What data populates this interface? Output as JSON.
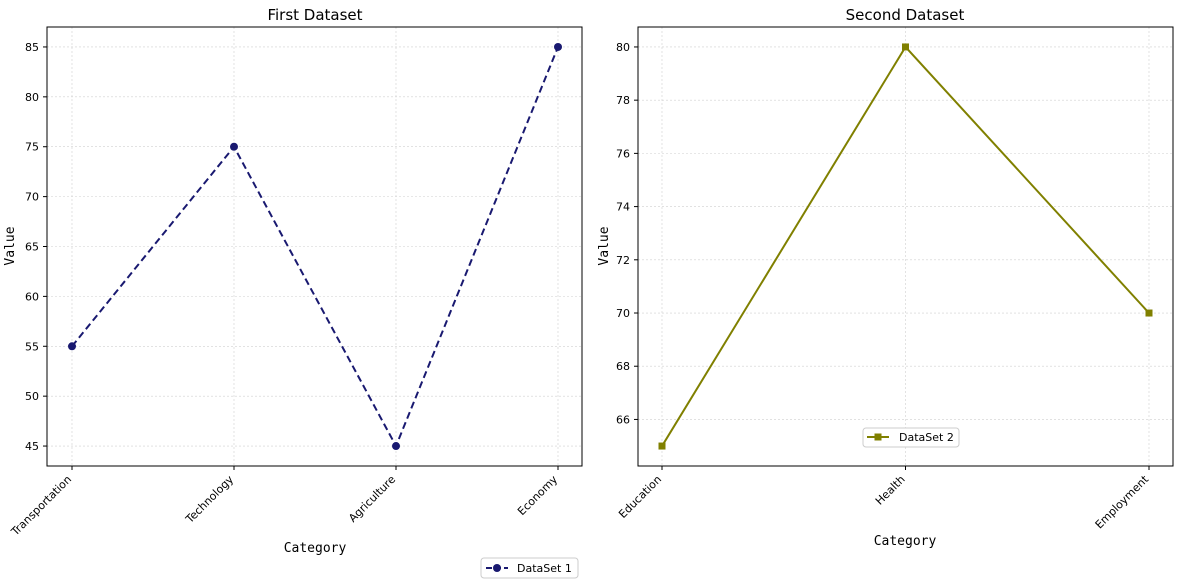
{
  "chart_data": [
    {
      "type": "line",
      "title": "First Dataset",
      "xlabel": "Category",
      "ylabel": "Value",
      "categories": [
        "Transportation",
        "Technology",
        "Agriculture",
        "Economy"
      ],
      "ylim": [
        43,
        87
      ],
      "yticks": [
        45,
        50,
        55,
        60,
        65,
        70,
        75,
        80,
        85
      ],
      "grid": true,
      "legend_position": "below-right",
      "series": [
        {
          "name": "DataSet 1",
          "values": [
            55,
            75,
            45,
            85
          ],
          "color": "#191970",
          "line_style": "dashed",
          "marker": "circle"
        }
      ]
    },
    {
      "type": "line",
      "title": "Second Dataset",
      "xlabel": "Category",
      "ylabel": "Value",
      "categories": [
        "Education",
        "Health",
        "Employment"
      ],
      "ylim": [
        64.25,
        80.75
      ],
      "yticks": [
        66,
        68,
        70,
        72,
        74,
        76,
        78,
        80
      ],
      "grid": true,
      "legend_position": "lower-center",
      "series": [
        {
          "name": "DataSet 2",
          "values": [
            65,
            80,
            70
          ],
          "color": "#808000",
          "line_style": "solid",
          "marker": "square"
        }
      ]
    }
  ]
}
